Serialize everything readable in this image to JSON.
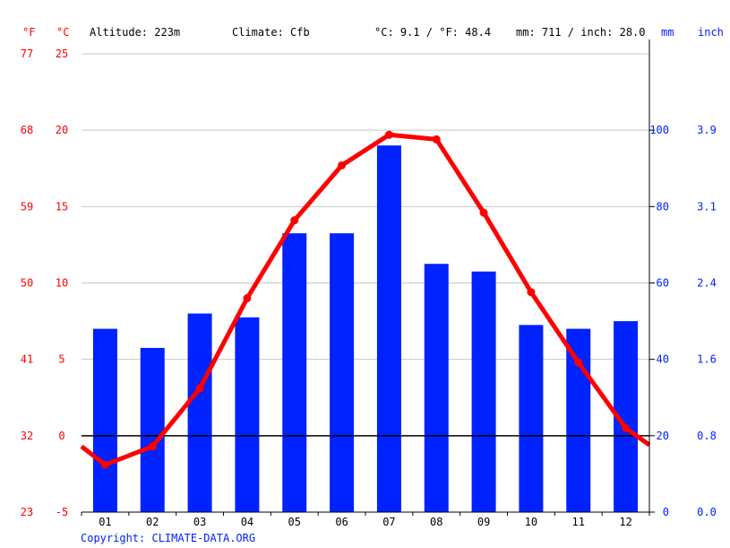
{
  "header": {
    "unit_f": "°F",
    "unit_c": "°C",
    "altitude": "Altitude: 223m",
    "climate": "Climate: Cfb",
    "temp_avg": "°C: 9.1 / °F: 48.4",
    "precip_avg": "mm: 711 / inch: 28.0",
    "unit_mm": "mm",
    "unit_inch": "inch"
  },
  "copyright": "Copyright: CLIMATE-DATA.ORG",
  "colors": {
    "temp": "#ff0000",
    "precip": "#0022ff",
    "grid": "#c8c8c8",
    "zero": "#000000"
  },
  "chart_data": {
    "type": "bar+line",
    "categories": [
      "01",
      "02",
      "03",
      "04",
      "05",
      "06",
      "07",
      "08",
      "09",
      "10",
      "11",
      "12"
    ],
    "series": [
      {
        "type": "bar",
        "axis": "right",
        "unit": "mm",
        "values": [
          48,
          43,
          52,
          51,
          73,
          73,
          96,
          65,
          63,
          49,
          48,
          50
        ]
      },
      {
        "type": "line",
        "axis": "left",
        "unit": "°C",
        "values": [
          -1.9,
          -0.7,
          3.1,
          9.0,
          14.1,
          17.7,
          19.7,
          19.4,
          14.6,
          9.4,
          4.8,
          0.5
        ],
        "line_start": -0.7,
        "line_end": -0.6
      }
    ],
    "y_left_c": {
      "ticks": [
        "25",
        "20",
        "15",
        "10",
        "5",
        "0",
        "-5"
      ],
      "range": [
        -5,
        25
      ]
    },
    "y_left_f": {
      "ticks": [
        "77",
        "68",
        "59",
        "50",
        "41",
        "32",
        "23"
      ]
    },
    "y_right_mm": {
      "ticks": [
        "100",
        "80",
        "60",
        "40",
        "20",
        "0"
      ],
      "range": [
        0,
        120
      ]
    },
    "y_right_inch": {
      "ticks": [
        "3.9",
        "3.1",
        "2.4",
        "1.6",
        "0.8",
        "0.0"
      ]
    }
  }
}
